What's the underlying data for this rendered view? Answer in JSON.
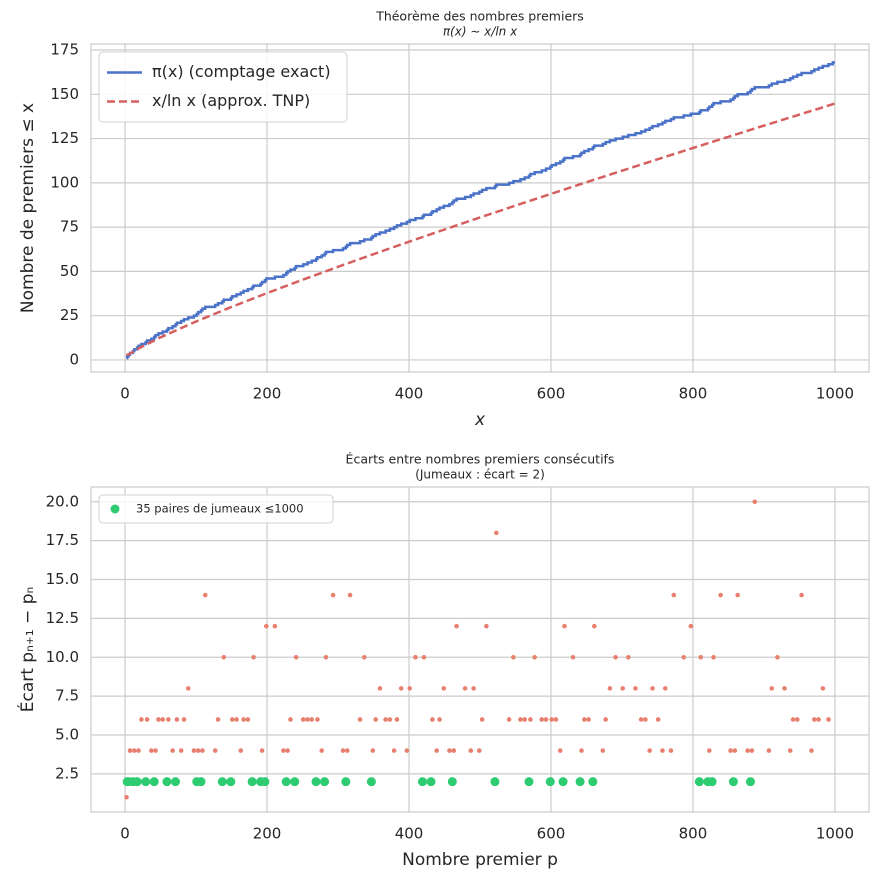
{
  "chart_data": [
    {
      "type": "line",
      "title": "Théorème des nombres premiers",
      "subtitle": "π(x) ∼ x/ln x",
      "x_label": "x",
      "y_label": "Nombre de premiers ≤ x",
      "xlim": [
        -48,
        1048
      ],
      "ylim": [
        -6.8,
        178.4
      ],
      "xticks": [
        0,
        200,
        400,
        600,
        800,
        1000
      ],
      "yticks": [
        0,
        25,
        50,
        75,
        100,
        125,
        150,
        175
      ],
      "grid": true,
      "legend": "upper left",
      "series": [
        {
          "name": "π(x) (comptage exact)",
          "color": "#4a72c8",
          "style": "step",
          "x": [
            2,
            3,
            5,
            7,
            11,
            13,
            17,
            19,
            23,
            29,
            31,
            37,
            41,
            43,
            47,
            53,
            59,
            61,
            67,
            71,
            73,
            79,
            83,
            89,
            97,
            101,
            103,
            107,
            109,
            113,
            127,
            131,
            137,
            139,
            149,
            151,
            157,
            163,
            167,
            173,
            179,
            181,
            191,
            193,
            197,
            199,
            211,
            223,
            227,
            229,
            233,
            239,
            241,
            251,
            257,
            263,
            269,
            271,
            277,
            281,
            283,
            293,
            307,
            311,
            313,
            317,
            331,
            337,
            347,
            349,
            353,
            359,
            367,
            373,
            379,
            383,
            389,
            397,
            401,
            409,
            419,
            421,
            431,
            433,
            439,
            443,
            449,
            457,
            461,
            463,
            467,
            479,
            487,
            491,
            499,
            503,
            509,
            521,
            523,
            541,
            547,
            557,
            563,
            569,
            571,
            577,
            587,
            593,
            599,
            601,
            607,
            613,
            617,
            619,
            631,
            641,
            643,
            647,
            653,
            659,
            661,
            673,
            677,
            683,
            691,
            701,
            709,
            719,
            727,
            733,
            739,
            743,
            751,
            757,
            761,
            769,
            773,
            787,
            797,
            809,
            811,
            821,
            823,
            827,
            829,
            839,
            853,
            857,
            859,
            863,
            877,
            881,
            883,
            887,
            907,
            911,
            919,
            929,
            937,
            941,
            947,
            953,
            967,
            971,
            977,
            983,
            991,
            997,
            1000
          ],
          "values": [
            1,
            2,
            3,
            4,
            5,
            6,
            7,
            8,
            9,
            10,
            11,
            12,
            13,
            14,
            15,
            16,
            17,
            18,
            19,
            20,
            21,
            22,
            23,
            24,
            25,
            26,
            27,
            28,
            29,
            30,
            31,
            32,
            33,
            34,
            35,
            36,
            37,
            38,
            39,
            40,
            41,
            42,
            43,
            44,
            45,
            46,
            47,
            48,
            49,
            50,
            51,
            52,
            53,
            54,
            55,
            56,
            57,
            58,
            59,
            60,
            61,
            62,
            63,
            64,
            65,
            66,
            67,
            68,
            69,
            70,
            71,
            72,
            73,
            74,
            75,
            76,
            77,
            78,
            79,
            80,
            81,
            82,
            83,
            84,
            85,
            86,
            87,
            88,
            89,
            90,
            91,
            92,
            93,
            94,
            95,
            96,
            97,
            98,
            99,
            100,
            101,
            102,
            103,
            104,
            105,
            106,
            107,
            108,
            109,
            110,
            111,
            112,
            113,
            114,
            115,
            116,
            117,
            118,
            119,
            120,
            121,
            122,
            123,
            124,
            125,
            126,
            127,
            128,
            129,
            130,
            131,
            132,
            133,
            134,
            135,
            136,
            137,
            138,
            139,
            140,
            141,
            142,
            143,
            144,
            145,
            146,
            147,
            148,
            149,
            150,
            151,
            152,
            153,
            154,
            155,
            156,
            157,
            158,
            159,
            160,
            161,
            162,
            163,
            164,
            165,
            166,
            167,
            168,
            168
          ]
        },
        {
          "name": "x/ln x (approx. TNP)",
          "color": "#d65f5f",
          "style": "dashed",
          "x": [
            2,
            5,
            10,
            20,
            50,
            100,
            150,
            200,
            250,
            300,
            350,
            400,
            450,
            500,
            550,
            600,
            650,
            700,
            750,
            800,
            850,
            900,
            950,
            1000
          ],
          "values": [
            2.885,
            3.107,
            4.343,
            6.676,
            12.781,
            21.715,
            29.936,
            37.748,
            45.277,
            52.597,
            59.748,
            66.761,
            73.659,
            80.455,
            87.165,
            93.796,
            100.355,
            106.852,
            113.291,
            119.678,
            126.016,
            132.307,
            138.555,
            144.765
          ]
        }
      ]
    },
    {
      "type": "scatter",
      "title": "Écarts entre nombres premiers consécutifs",
      "subtitle": "(Jumeaux : écart = 2)",
      "x_label": "Nombre premier p",
      "y_label": "Écart pₙ₊₁ − pₙ",
      "xlim": [
        -48,
        1048
      ],
      "ylim": [
        0.05,
        20.95
      ],
      "xticks": [
        0,
        200,
        400,
        600,
        800,
        1000
      ],
      "yticks": [
        2.5,
        {
          "value": 5,
          "label": "5.0"
        },
        7.5,
        {
          "value": 10,
          "label": "10.0"
        },
        12.5,
        {
          "value": 15,
          "label": "15.0"
        },
        17.5,
        {
          "value": 20,
          "label": "20.0"
        }
      ],
      "grid": true,
      "legend": "upper left",
      "series": [
        {
          "color": "#e8806f",
          "size": "small",
          "x": [
            2,
            3,
            5,
            7,
            11,
            13,
            17,
            19,
            23,
            29,
            31,
            37,
            41,
            43,
            47,
            53,
            59,
            61,
            67,
            71,
            73,
            79,
            83,
            89,
            97,
            101,
            103,
            107,
            109,
            113,
            127,
            131,
            137,
            139,
            149,
            151,
            157,
            163,
            167,
            173,
            179,
            181,
            191,
            193,
            197,
            199,
            211,
            223,
            227,
            229,
            233,
            239,
            241,
            251,
            257,
            263,
            269,
            271,
            277,
            281,
            283,
            293,
            307,
            311,
            313,
            317,
            331,
            337,
            347,
            349,
            353,
            359,
            367,
            373,
            379,
            383,
            389,
            397,
            401,
            409,
            419,
            421,
            431,
            433,
            439,
            443,
            449,
            457,
            461,
            463,
            467,
            479,
            487,
            491,
            499,
            503,
            509,
            521,
            523,
            541,
            547,
            557,
            563,
            569,
            571,
            577,
            587,
            593,
            599,
            601,
            607,
            613,
            617,
            619,
            631,
            641,
            643,
            647,
            653,
            659,
            661,
            673,
            677,
            683,
            691,
            701,
            709,
            719,
            727,
            733,
            739,
            743,
            751,
            757,
            761,
            769,
            773,
            787,
            797,
            809,
            811,
            821,
            823,
            827,
            829,
            839,
            853,
            857,
            859,
            863,
            877,
            881,
            883,
            887,
            907,
            911,
            919,
            929,
            937,
            941,
            947,
            953,
            967,
            971,
            977,
            983,
            991
          ],
          "values": [
            1,
            2,
            2,
            4,
            2,
            4,
            2,
            4,
            6,
            2,
            6,
            4,
            2,
            4,
            6,
            6,
            2,
            6,
            4,
            2,
            6,
            4,
            6,
            8,
            4,
            2,
            4,
            2,
            4,
            14,
            4,
            6,
            2,
            10,
            2,
            6,
            6,
            4,
            6,
            6,
            2,
            10,
            2,
            4,
            2,
            12,
            12,
            4,
            2,
            4,
            6,
            2,
            10,
            6,
            6,
            6,
            2,
            6,
            4,
            2,
            10,
            14,
            4,
            2,
            4,
            14,
            6,
            10,
            2,
            4,
            6,
            8,
            6,
            6,
            4,
            6,
            8,
            4,
            8,
            10,
            2,
            10,
            2,
            6,
            4,
            6,
            8,
            4,
            2,
            4,
            12,
            8,
            4,
            8,
            4,
            6,
            12,
            2,
            18,
            6,
            10,
            6,
            6,
            2,
            6,
            10,
            6,
            6,
            2,
            6,
            6,
            4,
            2,
            12,
            10,
            2,
            4,
            6,
            6,
            2,
            12,
            4,
            6,
            8,
            10,
            8,
            10,
            8,
            6,
            6,
            4,
            8,
            6,
            4,
            8,
            4,
            14,
            10,
            12,
            2,
            10,
            2,
            4,
            2,
            10,
            14,
            4,
            2,
            4,
            14,
            4,
            2,
            4,
            20,
            4,
            8,
            10,
            8,
            4,
            6,
            6,
            14,
            4,
            6,
            6,
            8,
            6
          ]
        },
        {
          "name": "35 paires de jumeaux ≤1000",
          "color": "#2ecc71",
          "size": "large",
          "x": [
            3,
            5,
            11,
            17,
            29,
            41,
            59,
            71,
            101,
            107,
            137,
            149,
            179,
            191,
            197,
            227,
            239,
            269,
            281,
            311,
            347,
            419,
            431,
            461,
            521,
            569,
            599,
            617,
            641,
            659,
            809,
            821,
            827,
            857,
            881
          ],
          "values": [
            2,
            2,
            2,
            2,
            2,
            2,
            2,
            2,
            2,
            2,
            2,
            2,
            2,
            2,
            2,
            2,
            2,
            2,
            2,
            2,
            2,
            2,
            2,
            2,
            2,
            2,
            2,
            2,
            2,
            2,
            2,
            2,
            2,
            2,
            2
          ]
        }
      ]
    }
  ]
}
